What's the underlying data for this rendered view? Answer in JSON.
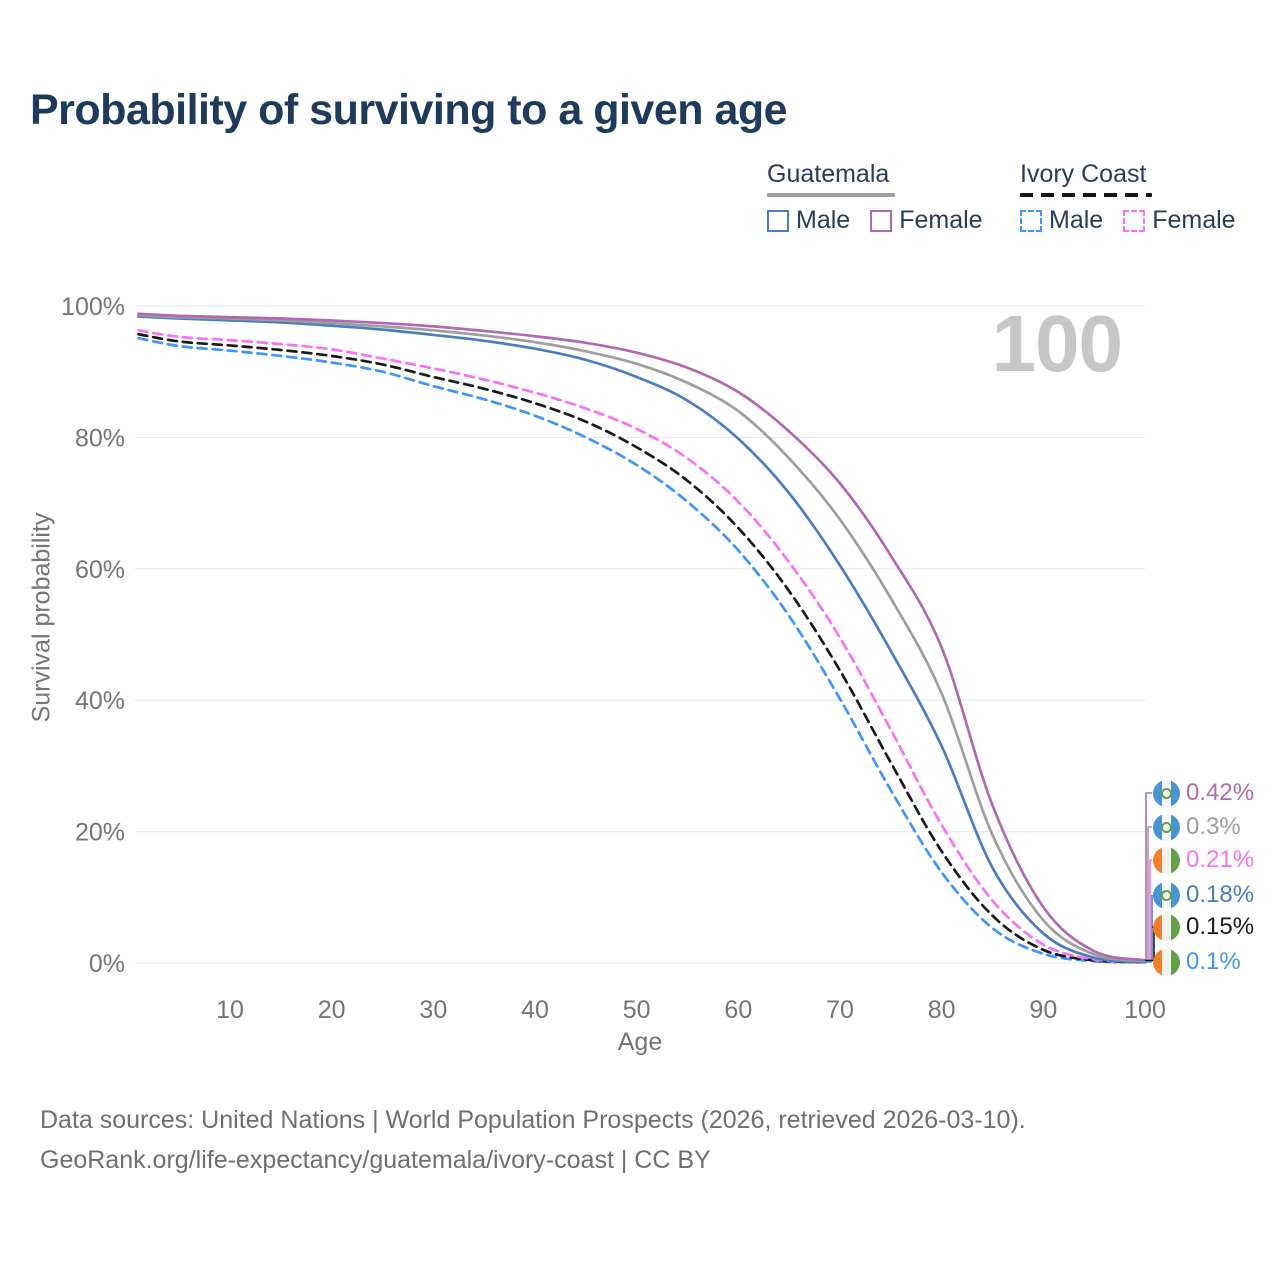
{
  "title": "Probability of surviving to a given age",
  "watermark": "100",
  "legend": {
    "position": "top-right",
    "groups": [
      {
        "label": "Guatemala",
        "line_style": "solid",
        "underline_color": "#9e9e9e",
        "items": [
          {
            "label": "Male",
            "color": "#4a7dc0",
            "dashed": false
          },
          {
            "label": "Female",
            "color": "#b069ae",
            "dashed": false
          }
        ]
      },
      {
        "label": "Ivory Coast",
        "line_style": "dashed",
        "underline_color": "#151515",
        "items": [
          {
            "label": "Male",
            "color": "#3d95ff",
            "dashed": true
          },
          {
            "label": "Female",
            "color": "#fb71f1",
            "dashed": true
          }
        ]
      }
    ]
  },
  "chart_data": {
    "type": "line",
    "title": "Probability of surviving to a given age",
    "xlabel": "Age",
    "ylabel": "Survival probability",
    "xlim": [
      1,
      100
    ],
    "ylim": [
      0,
      100
    ],
    "grid": true,
    "x_ticks": [
      {
        "value": 10,
        "label": "10"
      },
      {
        "value": 20,
        "label": "20"
      },
      {
        "value": 30,
        "label": "30"
      },
      {
        "value": 40,
        "label": "40"
      },
      {
        "value": 50,
        "label": "50"
      },
      {
        "value": 60,
        "label": "60"
      },
      {
        "value": 70,
        "label": "70"
      },
      {
        "value": 80,
        "label": "80"
      },
      {
        "value": 90,
        "label": "90"
      },
      {
        "value": 100,
        "label": "100"
      }
    ],
    "y_ticks": [
      {
        "value": 0,
        "label": "0%"
      },
      {
        "value": 20,
        "label": "20%"
      },
      {
        "value": 40,
        "label": "40%"
      },
      {
        "value": 60,
        "label": "60%"
      },
      {
        "value": 80,
        "label": "80%"
      },
      {
        "value": 100,
        "label": "100%"
      }
    ],
    "x": [
      1,
      5,
      10,
      15,
      20,
      25,
      30,
      35,
      40,
      45,
      50,
      55,
      60,
      65,
      70,
      75,
      80,
      85,
      90,
      95,
      100
    ],
    "series": [
      {
        "name": "Ivory Coast Male",
        "country": "Ivory Coast",
        "color": "#3d95ff",
        "dashed": true,
        "values": [
          95.1,
          93.9,
          93.2,
          92.4,
          91.4,
          90.0,
          87.8,
          85.8,
          83.3,
          80.0,
          75.8,
          70.2,
          62.8,
          52.8,
          40.2,
          26.3,
          13.8,
          5.3,
          1.4,
          0.28,
          0.1
        ]
      },
      {
        "name": "Ivory Coast",
        "country": "Ivory Coast",
        "color": "#1a1a1a",
        "dashed": true,
        "values": [
          95.7,
          94.6,
          94.0,
          93.3,
          92.4,
          91.1,
          89.2,
          87.4,
          85.2,
          82.4,
          78.5,
          73.4,
          66.2,
          56.6,
          44.5,
          30.5,
          17.0,
          7.2,
          2.0,
          0.4,
          0.15
        ]
      },
      {
        "name": "Ivory Coast Female",
        "country": "Ivory Coast",
        "color": "#fb71f1",
        "dashed": true,
        "values": [
          96.3,
          95.3,
          94.8,
          94.2,
          93.4,
          92.0,
          90.5,
          88.8,
          86.8,
          84.4,
          81.3,
          76.8,
          70.2,
          61.0,
          49.5,
          35.5,
          21.0,
          9.5,
          2.8,
          0.55,
          0.21
        ]
      },
      {
        "name": "Guatemala Male",
        "country": "Guatemala",
        "color": "#4a7dc0",
        "dashed": false,
        "values": [
          98.4,
          98.1,
          97.8,
          97.5,
          97.0,
          96.4,
          95.6,
          94.7,
          93.5,
          91.8,
          89.2,
          85.6,
          79.8,
          71.5,
          60.5,
          47.5,
          33.0,
          14.5,
          4.5,
          0.8,
          0.18
        ]
      },
      {
        "name": "Guatemala",
        "country": "Guatemala",
        "color": "#9e9e9e",
        "dashed": false,
        "values": [
          98.6,
          98.3,
          98.1,
          97.8,
          97.4,
          96.9,
          96.3,
          95.5,
          94.5,
          93.1,
          91.2,
          88.3,
          84.0,
          76.8,
          67.5,
          55.5,
          41.0,
          19.5,
          6.5,
          1.3,
          0.3
        ]
      },
      {
        "name": "Guatemala Female",
        "country": "Guatemala",
        "color": "#b069ae",
        "dashed": false,
        "values": [
          98.8,
          98.5,
          98.3,
          98.1,
          97.8,
          97.4,
          96.9,
          96.2,
          95.4,
          94.4,
          92.9,
          90.6,
          86.9,
          80.9,
          73.0,
          62.0,
          48.0,
          24.0,
          8.5,
          1.8,
          0.42
        ]
      }
    ],
    "end_labels": [
      {
        "text": "0.42%",
        "color": "#b46bac",
        "flag": "guatemala",
        "series": "Guatemala Female"
      },
      {
        "text": "0.3%",
        "color": "#9e9e9e",
        "flag": "guatemala",
        "series": "Guatemala"
      },
      {
        "text": "0.21%",
        "color": "#fb71f1",
        "flag": "ivory-coast",
        "series": "Ivory Coast Female"
      },
      {
        "text": "0.18%",
        "color": "#4a7dc0",
        "flag": "guatemala",
        "series": "Guatemala Male"
      },
      {
        "text": "0.15%",
        "color": "#1a1a1a",
        "flag": "ivory-coast",
        "series": "Ivory Coast"
      },
      {
        "text": "0.1%",
        "color": "#3d95ff",
        "flag": "ivory-coast",
        "series": "Ivory Coast Male"
      }
    ]
  },
  "footer": {
    "line1": "Data sources: United Nations | World Population Prospects (2026, retrieved 2026-03-10).",
    "line2": "GeoRank.org/life-expectancy/guatemala/ivory-coast | CC BY"
  }
}
